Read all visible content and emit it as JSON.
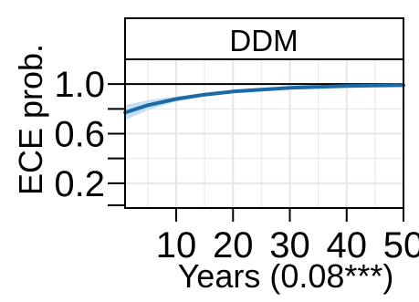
{
  "chart_data": {
    "type": "line",
    "panel_title": "DDM",
    "xlabel": "Years (0.08***)",
    "ylabel": "ECE prob.",
    "xlim": [
      1,
      50
    ],
    "ylim": [
      0.0,
      1.2
    ],
    "x_ticks": [
      10,
      20,
      30,
      40,
      50
    ],
    "x_tick_labels": [
      "10",
      "20",
      "30",
      "40",
      "50"
    ],
    "y_ticks": [
      0.2,
      0.6,
      1.0
    ],
    "y_tick_labels": [
      "0.2",
      "0.6",
      "1.0"
    ],
    "reference_line": 1.0,
    "grid": true,
    "series": [
      {
        "x": [
          1,
          5,
          10,
          15,
          20,
          25,
          30,
          35,
          40,
          45,
          50
        ],
        "y": [
          0.77,
          0.83,
          0.88,
          0.915,
          0.94,
          0.955,
          0.97,
          0.978,
          0.984,
          0.988,
          0.991
        ],
        "lower": [
          0.71,
          0.79,
          0.86,
          0.9,
          0.93,
          0.95,
          0.965,
          0.974,
          0.98,
          0.985,
          0.988
        ],
        "upper": [
          0.83,
          0.87,
          0.9,
          0.93,
          0.95,
          0.962,
          0.975,
          0.982,
          0.988,
          0.991,
          0.994
        ]
      }
    ],
    "colors": {
      "line": "#1c69a8",
      "band": "#c7dff0",
      "grid": "#e6e6e6",
      "reference": "#000000"
    }
  }
}
